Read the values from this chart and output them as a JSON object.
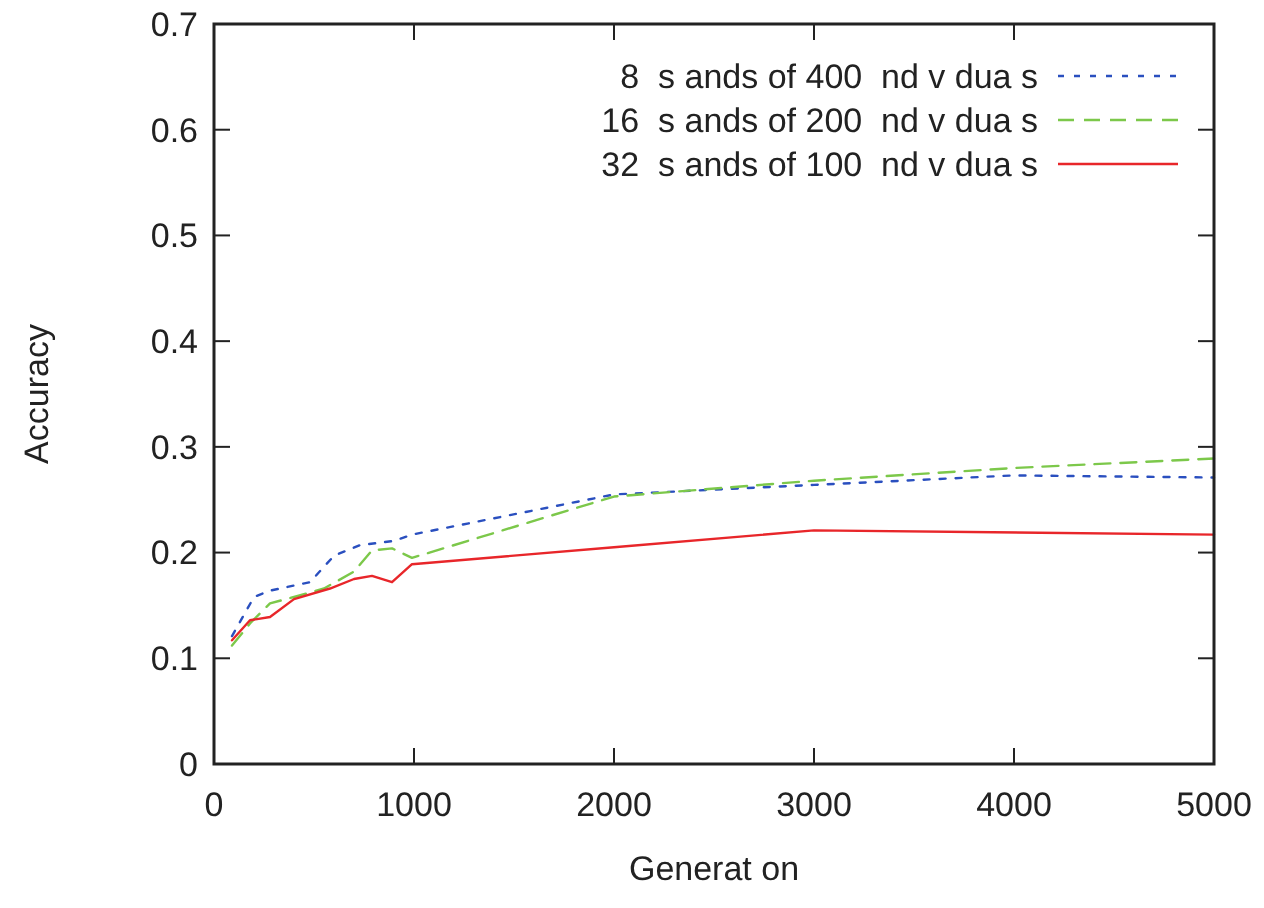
{
  "chart_data": {
    "type": "line",
    "xlabel": "Generat on",
    "ylabel": "Accuracy",
    "xlim": [
      0,
      5000
    ],
    "xticks": [
      0,
      1000,
      2000,
      3000,
      4000,
      5000
    ],
    "ylim": [
      0,
      0.7
    ],
    "yticks": [
      0,
      0.1,
      0.2,
      0.3,
      0.4,
      0.5,
      0.6,
      0.7
    ],
    "grid": false,
    "legend": "top right",
    "marker": "none",
    "series": [
      {
        "name": "8  s ands of 400  nd v dua s",
        "color": "#2a4fbf",
        "line_style": "dotted",
        "x": [
          90,
          200,
          280,
          480,
          600,
          730,
          900,
          990,
          2000,
          3000,
          4000,
          5000
        ],
        "values": [
          0.121,
          0.158,
          0.164,
          0.172,
          0.197,
          0.207,
          0.211,
          0.217,
          0.255,
          0.264,
          0.273,
          0.271
        ]
      },
      {
        "name": "16  s ands of 200  nd v dua s",
        "color": "#7cc84a",
        "line_style": "dashed",
        "x": [
          90,
          180,
          280,
          400,
          550,
          700,
          790,
          890,
          990,
          2000,
          3000,
          4000,
          5000
        ],
        "values": [
          0.112,
          0.133,
          0.152,
          0.158,
          0.166,
          0.182,
          0.202,
          0.204,
          0.195,
          0.253,
          0.268,
          0.28,
          0.289
        ]
      },
      {
        "name": "32  s ands of 100  nd v dua s",
        "color": "#e8262a",
        "line_style": "solid",
        "x": [
          90,
          180,
          280,
          400,
          580,
          700,
          790,
          890,
          990,
          2000,
          3000,
          5000
        ],
        "values": [
          0.117,
          0.136,
          0.139,
          0.156,
          0.166,
          0.175,
          0.178,
          0.172,
          0.189,
          0.205,
          0.221,
          0.217
        ]
      }
    ]
  }
}
